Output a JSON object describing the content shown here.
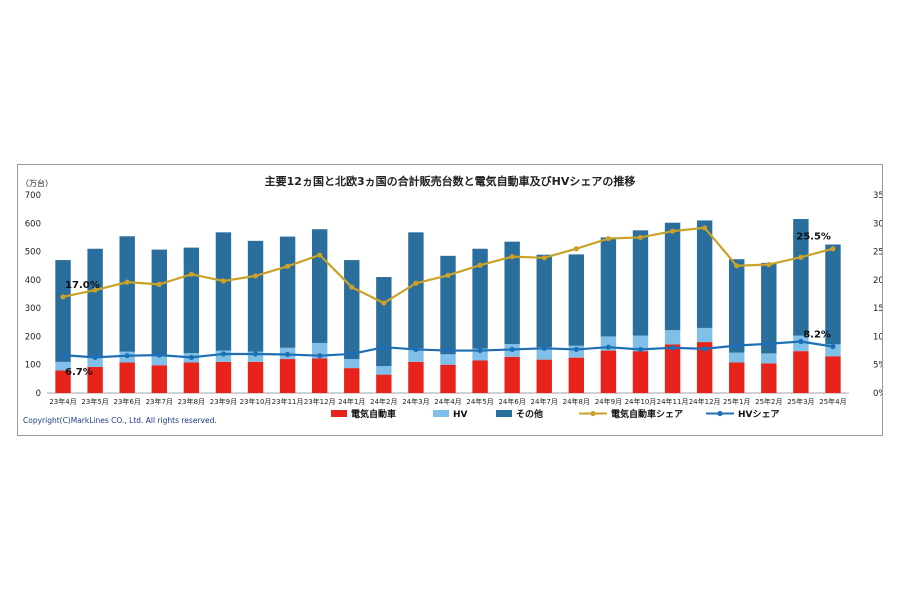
{
  "chart_data": {
    "type": "bar",
    "title": "主要12ヵ国と北欧3ヵ国の合計販売台数と電気自動車及びHVシェアの推移",
    "y_unit": "（万台）",
    "categories": [
      "23年4月",
      "23年5月",
      "23年6月",
      "23年7月",
      "23年8月",
      "23年9月",
      "23年10月",
      "23年11月",
      "23年12月",
      "24年1月",
      "24年2月",
      "24年3月",
      "24年4月",
      "24年5月",
      "24年6月",
      "24年7月",
      "24年8月",
      "24年9月",
      "24年10月",
      "24年11月",
      "24年12月",
      "25年1月",
      "25年2月",
      "25年3月",
      "25年4月"
    ],
    "ylim": [
      0,
      700
    ],
    "y2lim": [
      0,
      35
    ],
    "y_ticks": [
      "0",
      "100",
      "200",
      "300",
      "400",
      "500",
      "600",
      "700"
    ],
    "y2_ticks": [
      "0%",
      "5%",
      "10%",
      "15%",
      "20%",
      "25%",
      "30%",
      "35%"
    ],
    "series": [
      {
        "name": "電気自動車",
        "kind": "bar",
        "color": "#e8231b",
        "values": [
          80,
          92,
          108,
          98,
          108,
          110,
          110,
          120,
          122,
          88,
          65,
          110,
          100,
          115,
          128,
          118,
          125,
          150,
          148,
          172,
          180,
          108,
          105,
          148,
          130
        ]
      },
      {
        "name": "HV",
        "kind": "bar",
        "color": "#7fbfe8",
        "values": [
          30,
          33,
          38,
          35,
          33,
          40,
          36,
          40,
          55,
          32,
          30,
          48,
          37,
          42,
          45,
          44,
          42,
          50,
          55,
          50,
          50,
          35,
          35,
          55,
          42
        ]
      },
      {
        "name": "その他",
        "kind": "bar",
        "color": "#2a6e9e",
        "values": [
          360,
          385,
          408,
          374,
          373,
          418,
          392,
          393,
          402,
          350,
          315,
          410,
          348,
          353,
          362,
          327,
          323,
          350,
          372,
          380,
          380,
          330,
          320,
          412,
          353
        ]
      },
      {
        "name": "電気自動車シェア",
        "kind": "line",
        "color": "#c9a227",
        "values": [
          17.0,
          18.2,
          19.6,
          19.2,
          21.0,
          19.8,
          20.7,
          22.4,
          24.4,
          18.7,
          15.9,
          19.4,
          20.8,
          22.6,
          24.1,
          23.9,
          25.5,
          27.3,
          27.5,
          28.6,
          29.2,
          22.5,
          22.7,
          24.0,
          25.5
        ]
      },
      {
        "name": "HVシェア",
        "kind": "line",
        "color": "#1f6fb5",
        "values": [
          6.7,
          6.3,
          6.6,
          6.7,
          6.3,
          6.9,
          6.9,
          6.8,
          6.6,
          6.9,
          8.1,
          7.7,
          7.5,
          7.5,
          7.7,
          7.9,
          7.7,
          8.1,
          7.7,
          8.0,
          7.8,
          8.4,
          8.7,
          9.1,
          8.2
        ]
      }
    ],
    "annotations": [
      {
        "label": "17.0%",
        "category": "23年4月",
        "series": "電気自動車シェア"
      },
      {
        "label": "6.7%",
        "category": "23年4月",
        "series": "HVシェア"
      },
      {
        "label": "25.5%",
        "category": "25年4月",
        "series": "電気自動車シェア"
      },
      {
        "label": "8.2%",
        "category": "25年4月",
        "series": "HVシェア"
      }
    ],
    "legend_position": "bottom"
  },
  "copyright": "Copyright(C)MarkLines CO., Ltd. All rights reserved."
}
